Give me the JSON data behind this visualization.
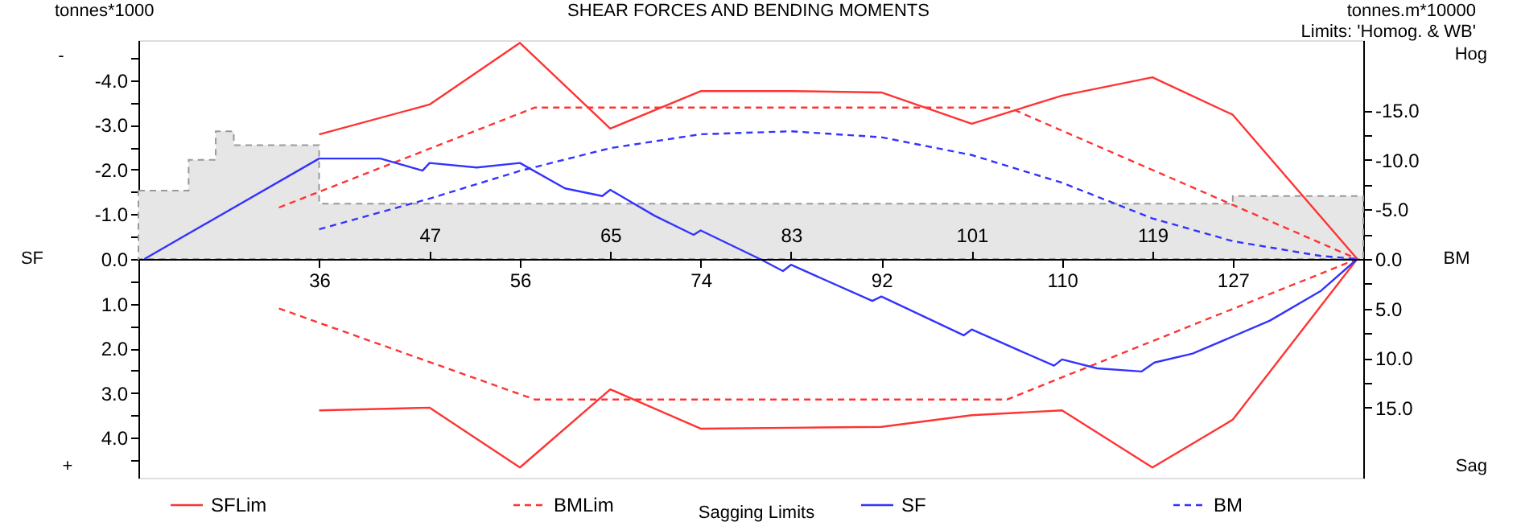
{
  "chart_data": {
    "type": "line",
    "title": "SHEAR FORCES AND BENDING MOMENTS",
    "ylabel": "tonnes*1000",
    "y2label": "tonnes.m*10000",
    "annotations": [
      "-",
      "+",
      "SF",
      "BM",
      "Hog",
      "Sag",
      "Limits: 'Homog. & WB'",
      "Sagging Limits"
    ],
    "xlim": [
      18,
      140
    ],
    "xticks": [
      36,
      56,
      74,
      92,
      110,
      127
    ],
    "x2lim": [
      18,
      140
    ],
    "x2ticks": [
      47,
      65,
      83,
      101,
      119
    ],
    "ylim": [
      4.9,
      -4.9
    ],
    "yticks": [
      {
        "value": -4.5,
        "label": null
      },
      {
        "value": -4,
        "label": "-4.0"
      },
      {
        "value": -3.5,
        "label": null
      },
      {
        "value": -3,
        "label": "-3.0"
      },
      {
        "value": -2.5,
        "label": null
      },
      {
        "value": -2,
        "label": "-2.0"
      },
      {
        "value": -1.5,
        "label": null
      },
      {
        "value": -1,
        "label": "-1.0"
      },
      {
        "value": -0.5,
        "label": null
      },
      {
        "value": 0,
        "label": "0.0"
      },
      {
        "value": 0.5,
        "label": null
      },
      {
        "value": 1,
        "label": "1.0"
      },
      {
        "value": 1.5,
        "label": null
      },
      {
        "value": 2,
        "label": "2.0"
      },
      {
        "value": 2.5,
        "label": null
      },
      {
        "value": 3,
        "label": "3.0"
      },
      {
        "value": 3.5,
        "label": null
      },
      {
        "value": 4,
        "label": "4.0"
      },
      {
        "value": 4.5,
        "label": null
      }
    ],
    "y2lim": [
      22.1,
      -22.1
    ],
    "y2ticks": [
      {
        "value": -15,
        "label": "-15.0"
      },
      {
        "value": -12.5,
        "label": null
      },
      {
        "value": -10,
        "label": "-10.0"
      },
      {
        "value": -7.5,
        "label": null
      },
      {
        "value": -5,
        "label": "-5.0"
      },
      {
        "value": -2.5,
        "label": null
      },
      {
        "value": 0,
        "label": "0.0"
      },
      {
        "value": 2.5,
        "label": null
      },
      {
        "value": 5,
        "label": "5.0"
      },
      {
        "value": 7.5,
        "label": null
      },
      {
        "value": 10,
        "label": "10.0"
      },
      {
        "value": 12.5,
        "label": null
      },
      {
        "value": 15,
        "label": "15.0"
      }
    ],
    "grid": false,
    "legend": "bottom",
    "series": [
      {
        "type": "area",
        "color": "#e6e6e6",
        "line_style": "dashed",
        "x": [
          18,
          23,
          25.7,
          27.5,
          36,
          127,
          140
        ],
        "values": [
          -1.53,
          -2.22,
          -2.86,
          -2.55,
          -1.24,
          -1.41,
          -1.41
        ]
      },
      {
        "name": "SFLim",
        "color": "#ff3333",
        "line_style": "solid",
        "x": [
          36,
          47,
          56,
          65,
          74,
          83,
          92,
          101,
          110,
          119,
          127,
          139.4
        ],
        "values": [
          -2.79,
          -3.46,
          -4.84,
          -2.92,
          -3.76,
          -3.76,
          -3.73,
          -3.03,
          -3.66,
          -4.07,
          -3.23,
          0
        ]
      },
      {
        "color": "#ff3333",
        "line_style": "solid",
        "x": [
          36,
          47,
          56,
          65,
          74,
          83,
          92,
          101,
          110,
          119,
          127,
          139.4
        ],
        "values": [
          3.39,
          3.33,
          4.67,
          2.92,
          3.8,
          3.78,
          3.76,
          3.5,
          3.39,
          4.67,
          3.6,
          0
        ]
      },
      {
        "name": "BMLim",
        "color": "#ff3333",
        "line_style": "dashed",
        "axis": "y2",
        "x": [
          32,
          57.5,
          104.7,
          139.4
        ],
        "values": [
          -5.2,
          -15.3,
          -15.3,
          0
        ]
      },
      {
        "color": "#ff3333",
        "line_style": "dashed",
        "axis": "y2",
        "x": [
          32,
          57.5,
          104.5,
          139.4
        ],
        "values": [
          5.0,
          14.2,
          14.2,
          0
        ]
      },
      {
        "name": "SF",
        "color": "#3333ff",
        "line_style": "solid",
        "x": [
          18.6,
          36,
          42.1,
          46.3,
          47,
          51.7,
          56,
          60.5,
          64.2,
          65,
          69.4,
          73.3,
          74,
          79.9,
          82.2,
          83,
          91.1,
          92,
          100.2,
          101,
          109.2,
          110,
          113.5,
          117.9,
          119.2,
          123,
          130.7,
          135.8,
          139.4
        ],
        "values": [
          0,
          -2.25,
          -2.25,
          -1.98,
          -2.15,
          -2.05,
          -2.15,
          -1.58,
          -1.41,
          -1.55,
          -0.97,
          -0.54,
          -0.64,
          0,
          0.27,
          0.13,
          0.94,
          0.84,
          1.71,
          1.58,
          2.39,
          2.25,
          2.45,
          2.52,
          2.32,
          2.12,
          1.38,
          0.71,
          0
        ]
      },
      {
        "name": "BM",
        "color": "#3333ff",
        "line_style": "dashed",
        "axis": "y2",
        "x": [
          36,
          47,
          56,
          65,
          74,
          83,
          92,
          101,
          110,
          119,
          127,
          135.8,
          139.4
        ],
        "values": [
          -3.0,
          -6.1,
          -8.9,
          -11.2,
          -12.6,
          -12.9,
          -12.3,
          -10.5,
          -7.7,
          -4.1,
          -1.8,
          -0.3,
          0
        ]
      }
    ]
  }
}
